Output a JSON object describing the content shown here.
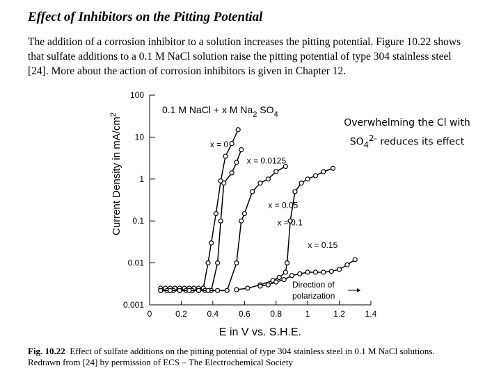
{
  "heading": "Effect of Inhibitors on the Pitting Potential",
  "paragraph": [
    "The addition of a corrosion inhibitor to a solution increases the pitting potential. Figure 10.22 shows",
    "that sulfate additions to a 0.1 M NaCl solution raise the pitting potential of type 304 stainless steel",
    "[24]. More about the action of corrosion inhibitors is given in Chapter 12."
  ],
  "caption": {
    "label": "Fig. 10.22",
    "lines": [
      "Effect of sulfate additions on the pitting potential of type 304 stainless steel in 0.1 M NaCl solutions.",
      "Redrawn from [24] by permission of ECS – The Electrochemical Society"
    ]
  },
  "callout": [
    "Overwhelming the Cl with",
    "SO",
    "4",
    "2-",
    " reduces its effect"
  ],
  "chart_data": {
    "type": "line",
    "annotation": [
      "0.1 M NaCl + x M Na",
      "2",
      " SO",
      "4"
    ],
    "direction_note": [
      "Direction of",
      "polarization"
    ],
    "xlabel": "E in V vs. S.H.E.",
    "ylabel": [
      "Current Density in mA/cm",
      "2"
    ],
    "xlim": [
      0,
      1.4
    ],
    "xticks": [
      0,
      0.2,
      0.4,
      0.6,
      0.8,
      1,
      1.2,
      1.4
    ],
    "ylim": [
      0.001,
      100
    ],
    "yticks": [
      0.001,
      0.01,
      0.1,
      1,
      10,
      100
    ],
    "ylog": true,
    "marker": "open-circle",
    "series": [
      {
        "name": "x = 0",
        "color": "#000000",
        "x": [
          0.07,
          0.1,
          0.13,
          0.16,
          0.19,
          0.22,
          0.25,
          0.28,
          0.31,
          0.34,
          0.37,
          0.39,
          0.42,
          0.45,
          0.48,
          0.52,
          0.56
        ],
        "values": [
          0.0025,
          0.0025,
          0.0025,
          0.0025,
          0.0025,
          0.0025,
          0.0025,
          0.0025,
          0.0025,
          0.0025,
          0.01,
          0.03,
          0.15,
          0.9,
          3.5,
          7,
          15
        ]
      },
      {
        "name": "x = 0.0125",
        "color": "#000000",
        "x": [
          0.07,
          0.11,
          0.15,
          0.19,
          0.23,
          0.27,
          0.31,
          0.35,
          0.39,
          0.43,
          0.45,
          0.47,
          0.52,
          0.55,
          0.58
        ],
        "values": [
          0.0022,
          0.0022,
          0.0022,
          0.0022,
          0.0022,
          0.0022,
          0.0022,
          0.0022,
          0.0022,
          0.01,
          0.1,
          0.8,
          1.4,
          2.5,
          5
        ]
      },
      {
        "name": "x = 0.05",
        "color": "#000000",
        "x": [
          0.07,
          0.13,
          0.19,
          0.25,
          0.31,
          0.37,
          0.43,
          0.49,
          0.55,
          0.58,
          0.6,
          0.65,
          0.7,
          0.75,
          0.8,
          0.86
        ],
        "values": [
          0.0022,
          0.0022,
          0.0022,
          0.0022,
          0.0022,
          0.0022,
          0.0022,
          0.0022,
          0.01,
          0.1,
          0.15,
          0.5,
          0.8,
          1,
          1.5,
          2
        ]
      },
      {
        "name": "x = 0.1",
        "color": "#000000",
        "x": [
          0.55,
          0.62,
          0.7,
          0.78,
          0.82,
          0.86,
          0.87,
          0.89,
          0.92,
          0.96,
          1,
          1.05,
          1.1,
          1.16
        ],
        "values": [
          0.0023,
          0.0025,
          0.003,
          0.0038,
          0.0045,
          0.006,
          0.01,
          0.1,
          0.5,
          0.8,
          1,
          1.2,
          1.5,
          1.8
        ]
      },
      {
        "name": "x = 0.15",
        "color": "#000000",
        "x": [
          0.7,
          0.75,
          0.8,
          0.85,
          0.9,
          0.95,
          1,
          1.05,
          1.1,
          1.15,
          1.2,
          1.25,
          1.3
        ],
        "values": [
          0.0028,
          0.003,
          0.0035,
          0.004,
          0.005,
          0.0055,
          0.006,
          0.006,
          0.006,
          0.0063,
          0.007,
          0.009,
          0.012
        ]
      }
    ]
  }
}
